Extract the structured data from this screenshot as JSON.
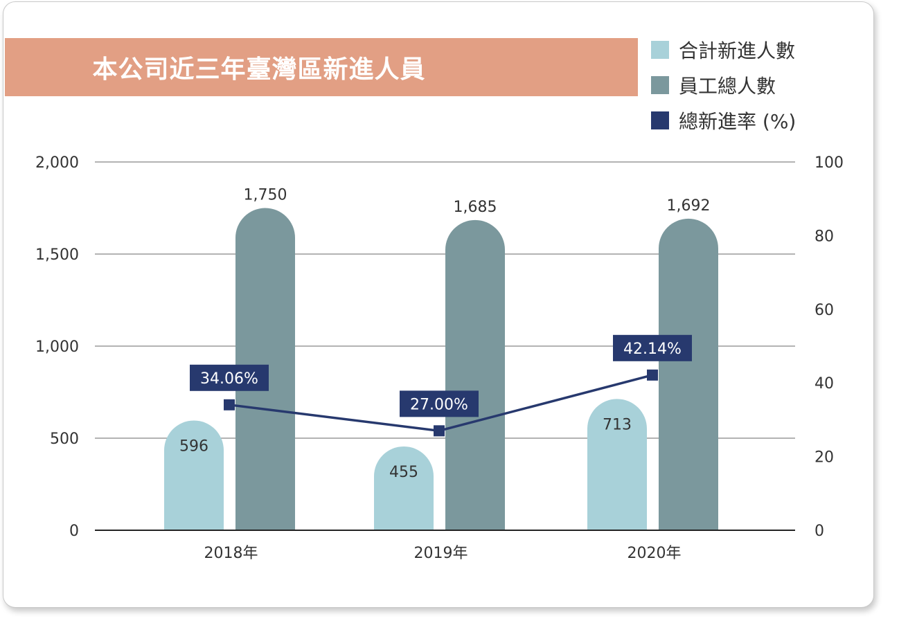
{
  "chart_data": {
    "type": "bar",
    "title": "本公司近三年臺灣區新進人員",
    "categories": [
      "2018年",
      "2019年",
      "2020年"
    ],
    "series": [
      {
        "name": "合計新進人數",
        "kind": "bar",
        "axis": "left",
        "color": "#a8d1d9",
        "values": [
          596,
          455,
          713
        ]
      },
      {
        "name": "員工總人數",
        "kind": "bar",
        "axis": "left",
        "color": "#7b989d",
        "values": [
          1750,
          1685,
          1692
        ]
      },
      {
        "name": "總新進率 (%)",
        "kind": "line",
        "axis": "right",
        "color": "#27396e",
        "values": [
          34.06,
          27.0,
          42.14
        ]
      }
    ],
    "bar_value_labels": [
      [
        "596",
        "455",
        "713"
      ],
      [
        "1,750",
        "1,685",
        "1,692"
      ]
    ],
    "rate_value_labels": [
      "34.06%",
      "27.00%",
      "42.14%"
    ],
    "y_left": {
      "ticks": [
        "0",
        "500",
        "1,000",
        "1,500",
        "2,000"
      ],
      "ylim": [
        0,
        2000
      ]
    },
    "y_right": {
      "ticks": [
        "0",
        "20",
        "40",
        "60",
        "80",
        "100"
      ],
      "ylim": [
        0,
        100
      ]
    },
    "grid": true,
    "legend_position": "top-right"
  }
}
